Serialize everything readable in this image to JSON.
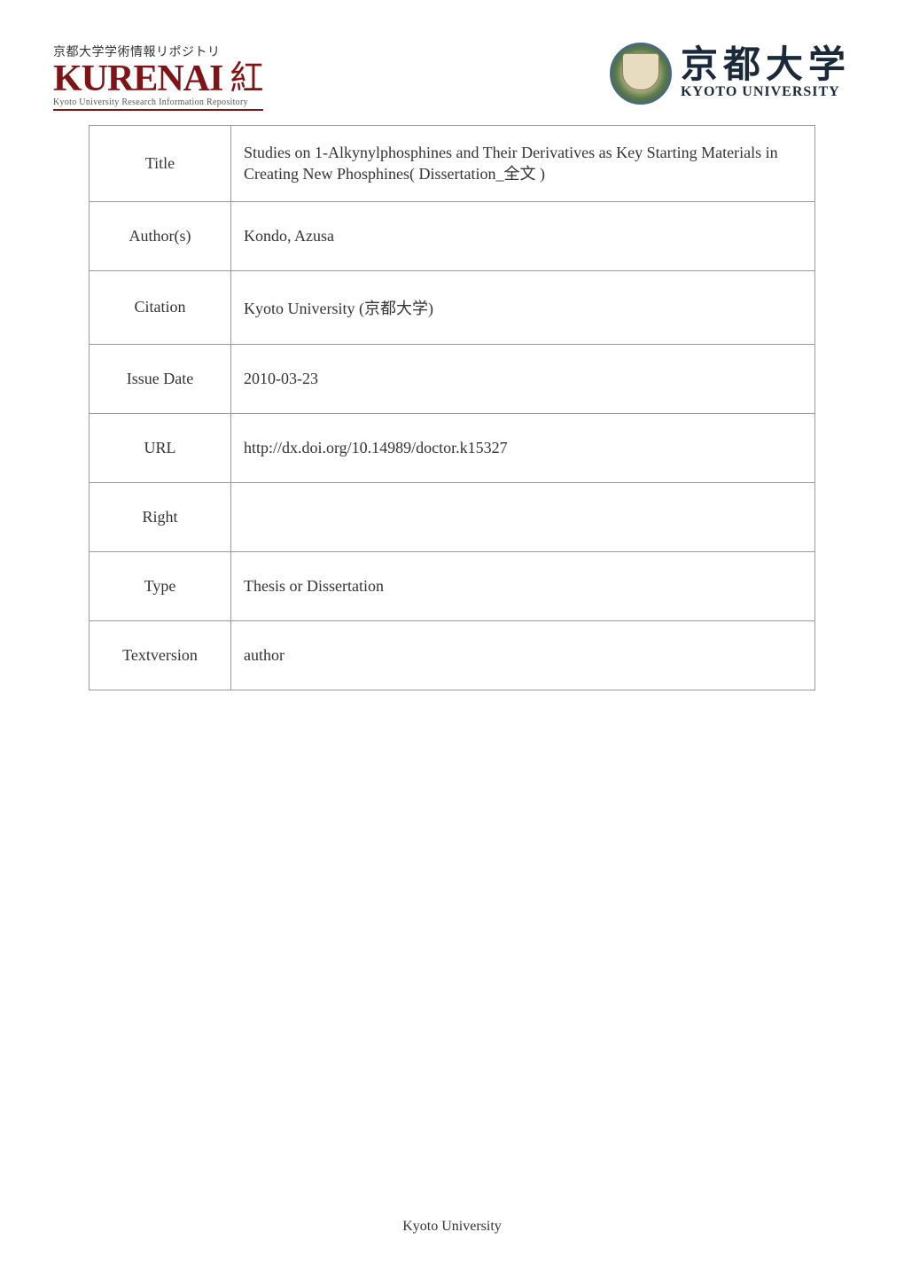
{
  "header": {
    "left_logo": {
      "top_text": "京都大学学術情報リポジトリ",
      "main_text": "KURENAI",
      "kanji": "紅",
      "sub_text": "Kyoto University Research Information Repository"
    },
    "right_logo": {
      "jp_text": "京都大学",
      "en_text": "KYOTO UNIVERSITY"
    }
  },
  "table": {
    "rows": [
      {
        "label": "Title",
        "value": "Studies on 1-Alkynylphosphines and Their Derivatives as Key Starting Materials in Creating New Phosphines( Dissertation_全文 )"
      },
      {
        "label": "Author(s)",
        "value": "Kondo, Azusa"
      },
      {
        "label": "Citation",
        "value": "Kyoto University (京都大学)"
      },
      {
        "label": "Issue Date",
        "value": "2010-03-23"
      },
      {
        "label": "URL",
        "value": "http://dx.doi.org/10.14989/doctor.k15327"
      },
      {
        "label": "Right",
        "value": ""
      },
      {
        "label": "Type",
        "value": "Thesis or Dissertation"
      },
      {
        "label": "Textversion",
        "value": "author"
      }
    ]
  },
  "footer": {
    "text": "Kyoto University"
  }
}
